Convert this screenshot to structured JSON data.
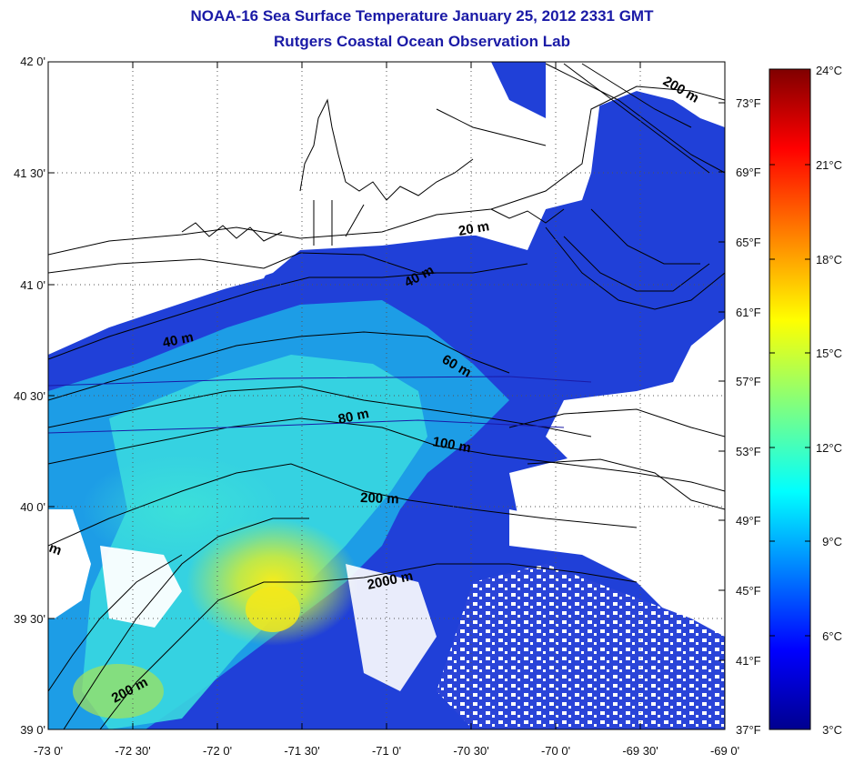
{
  "title": "NOAA-16 Sea Surface Temperature January 25, 2012 2331 GMT",
  "subtitle": "Rutgers Coastal Ocean Observation Lab",
  "lat_ticks": [
    "42 0'",
    "41 30'",
    "41 0'",
    "40 30'",
    "40 0'",
    "39 30'",
    "39 0'"
  ],
  "lon_ticks": [
    "-73 0'",
    "-72 30'",
    "-72 0'",
    "-71 30'",
    "-71 0'",
    "-70 30'",
    "-70 0'",
    "-69 30'",
    "-69 0'"
  ],
  "fahrenheit_ticks": [
    "73°F",
    "69°F",
    "65°F",
    "61°F",
    "57°F",
    "53°F",
    "49°F",
    "45°F",
    "41°F",
    "37°F"
  ],
  "celsius_ticks": [
    "24°C",
    "21°C",
    "18°C",
    "15°C",
    "12°C",
    "9°C",
    "6°C",
    "3°C"
  ],
  "depth_labels": [
    "20 m",
    "40 m",
    "40 m",
    "60 m",
    "80 m",
    "100 m",
    "200 m",
    "200 m",
    "2000 m",
    "200 m",
    "m"
  ],
  "colors": {
    "title": "#1a1aa6",
    "land": "#ffffff",
    "cold": "#1f3fd0",
    "warm": "#f2e61e"
  },
  "colorbar_range_c": [
    3,
    24
  ]
}
